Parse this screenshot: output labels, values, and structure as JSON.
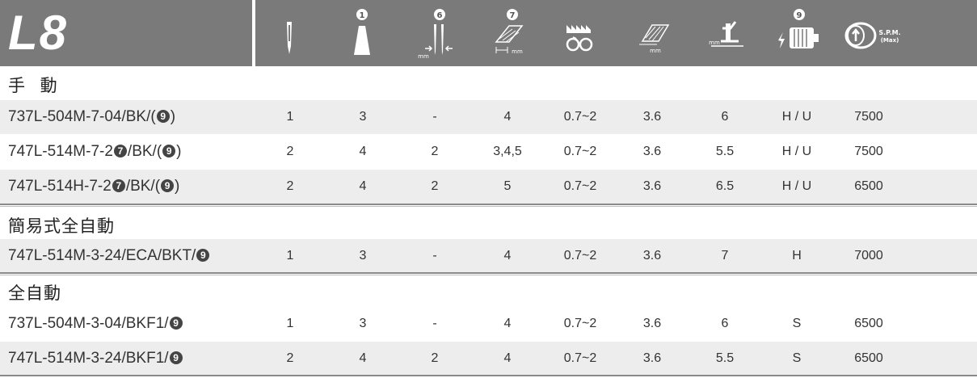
{
  "header": {
    "model": "L8",
    "icons": [
      {
        "name": "needle-icon"
      },
      {
        "name": "thread-cone-icon",
        "num": "1"
      },
      {
        "name": "needle-gauge-icon",
        "num": "6",
        "unit": "mm"
      },
      {
        "name": "stitch-width-icon",
        "num": "7",
        "unit": "mm"
      },
      {
        "name": "feed-dog-icon"
      },
      {
        "name": "stitch-length-icon",
        "unit": "mm"
      },
      {
        "name": "presser-foot-lift-icon",
        "unit": "mm"
      },
      {
        "name": "motor-icon",
        "num": "9"
      },
      {
        "name": "spm-speed-icon",
        "label": "S.P.M.",
        "sublabel": "(Max)"
      }
    ]
  },
  "sections": [
    {
      "title": "手 動",
      "rows": [
        {
          "model": "737L-504M-7-04/BK/(",
          "badge": "9",
          "suffix": ")",
          "values": [
            "1",
            "3",
            "-",
            "4",
            "0.7~2",
            "3.6",
            "6",
            "H / U",
            "7500"
          ]
        },
        {
          "model": "747L-514M-7-2",
          "badge2": "7",
          "mid": "/BK/(",
          "badge": "9",
          "suffix": ")",
          "values": [
            "2",
            "4",
            "2",
            "3,4,5",
            "0.7~2",
            "3.6",
            "5.5",
            "H / U",
            "7500"
          ]
        },
        {
          "model": "747L-514H-7-2",
          "badge2": "7",
          "mid": "/BK/(",
          "badge": "9",
          "suffix": ")",
          "values": [
            "2",
            "4",
            "2",
            "5",
            "0.7~2",
            "3.6",
            "6.5",
            "H / U",
            "6500"
          ]
        }
      ]
    },
    {
      "title": "簡易式全自動",
      "rows": [
        {
          "model": "747L-514M-3-24/ECA/BKT/",
          "badge": "9",
          "suffix": "",
          "values": [
            "1",
            "3",
            "-",
            "4",
            "0.7~2",
            "3.6",
            "7",
            "H",
            "7000"
          ]
        }
      ]
    },
    {
      "title": "全自動",
      "rows": [
        {
          "model": "737L-504M-3-04/BKF1/",
          "badge": "9",
          "suffix": "",
          "values": [
            "1",
            "3",
            "-",
            "4",
            "0.7~2",
            "3.6",
            "6",
            "S",
            "6500"
          ]
        },
        {
          "model": "747L-514M-3-24/BKF1/",
          "badge": "9",
          "suffix": "",
          "values": [
            "2",
            "4",
            "2",
            "4",
            "0.7~2",
            "3.6",
            "5.5",
            "S",
            "6500"
          ]
        }
      ]
    }
  ]
}
